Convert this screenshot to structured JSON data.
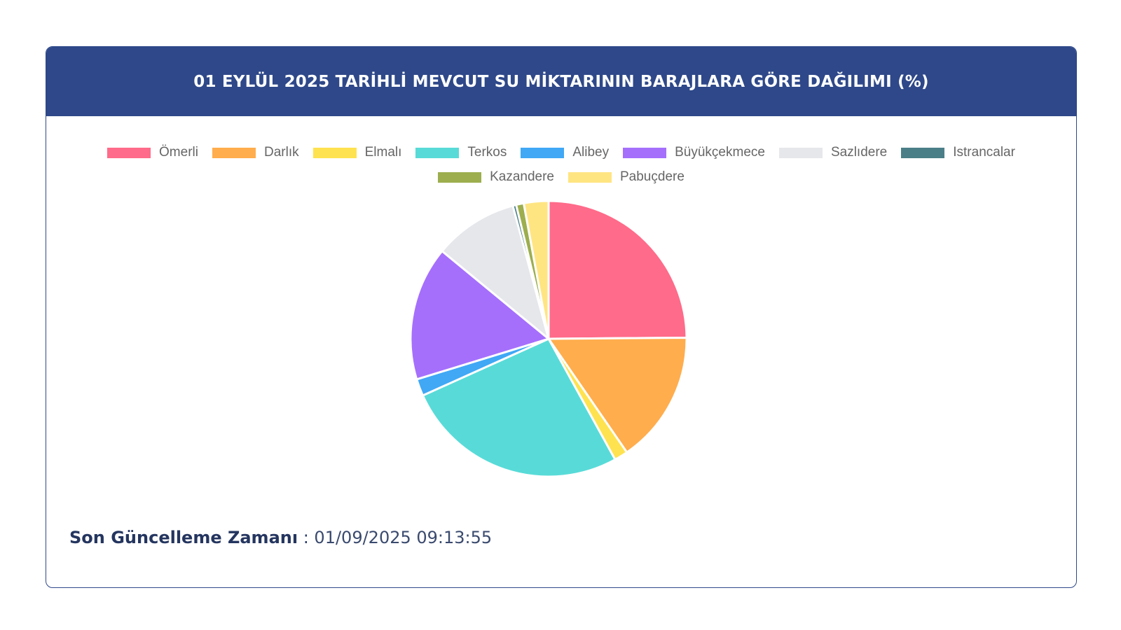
{
  "header": {
    "title": "01 EYLÜL 2025 TARİHLİ MEVCUT SU MİKTARININ BARAJLARA GÖRE DAĞILIMI (%)"
  },
  "footer": {
    "label": "Son Güncelleme Zamanı",
    "separator": " : ",
    "value": "01/09/2025 09:13:55"
  },
  "colors": {
    "header_bg": "#2e4889"
  },
  "chart_data": {
    "type": "pie",
    "title": "01 EYLÜL 2025 TARİHLİ MEVCUT SU MİKTARININ BARAJLARA GÖRE DAĞILIMI (%)",
    "legend_position": "top",
    "slices": [
      {
        "name": "Ömerli",
        "value": 25.0,
        "color": "#ff6b8a"
      },
      {
        "name": "Darlık",
        "value": 15.6,
        "color": "#ffad4d"
      },
      {
        "name": "Elmalı",
        "value": 1.6,
        "color": "#ffe24f"
      },
      {
        "name": "Terkos",
        "value": 26.4,
        "color": "#58dbd8"
      },
      {
        "name": "Alibey",
        "value": 2.0,
        "color": "#40a8f5"
      },
      {
        "name": "Büyükçekmece",
        "value": 15.8,
        "color": "#a56ffc"
      },
      {
        "name": "Sazlıdere",
        "value": 9.9,
        "color": "#e6e7eb"
      },
      {
        "name": "Istrancalar",
        "value": 0.4,
        "color": "#4a7f87"
      },
      {
        "name": "Kazandere",
        "value": 0.9,
        "color": "#9cae4e"
      },
      {
        "name": "Pabuçdere",
        "value": 2.9,
        "color": "#ffe582"
      }
    ]
  }
}
